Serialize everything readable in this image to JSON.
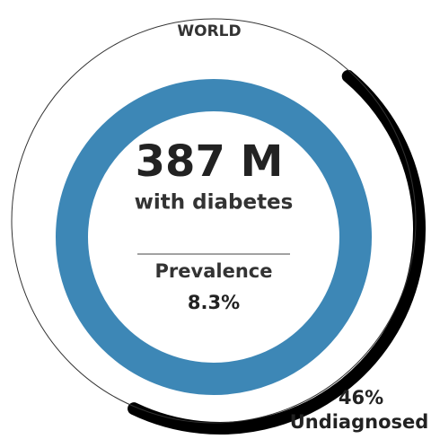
{
  "chart_data": {
    "type": "ring",
    "title": "WORLD",
    "headline": "387 M",
    "headline_label": "with diabetes",
    "stat_label": "Prevalence",
    "stat": "8.3%",
    "categories": [
      "Undiagnosed"
    ],
    "values": [
      46
    ],
    "value_labels": [
      "46%"
    ],
    "ring_color": "#3d87b6",
    "color": "#000000"
  }
}
